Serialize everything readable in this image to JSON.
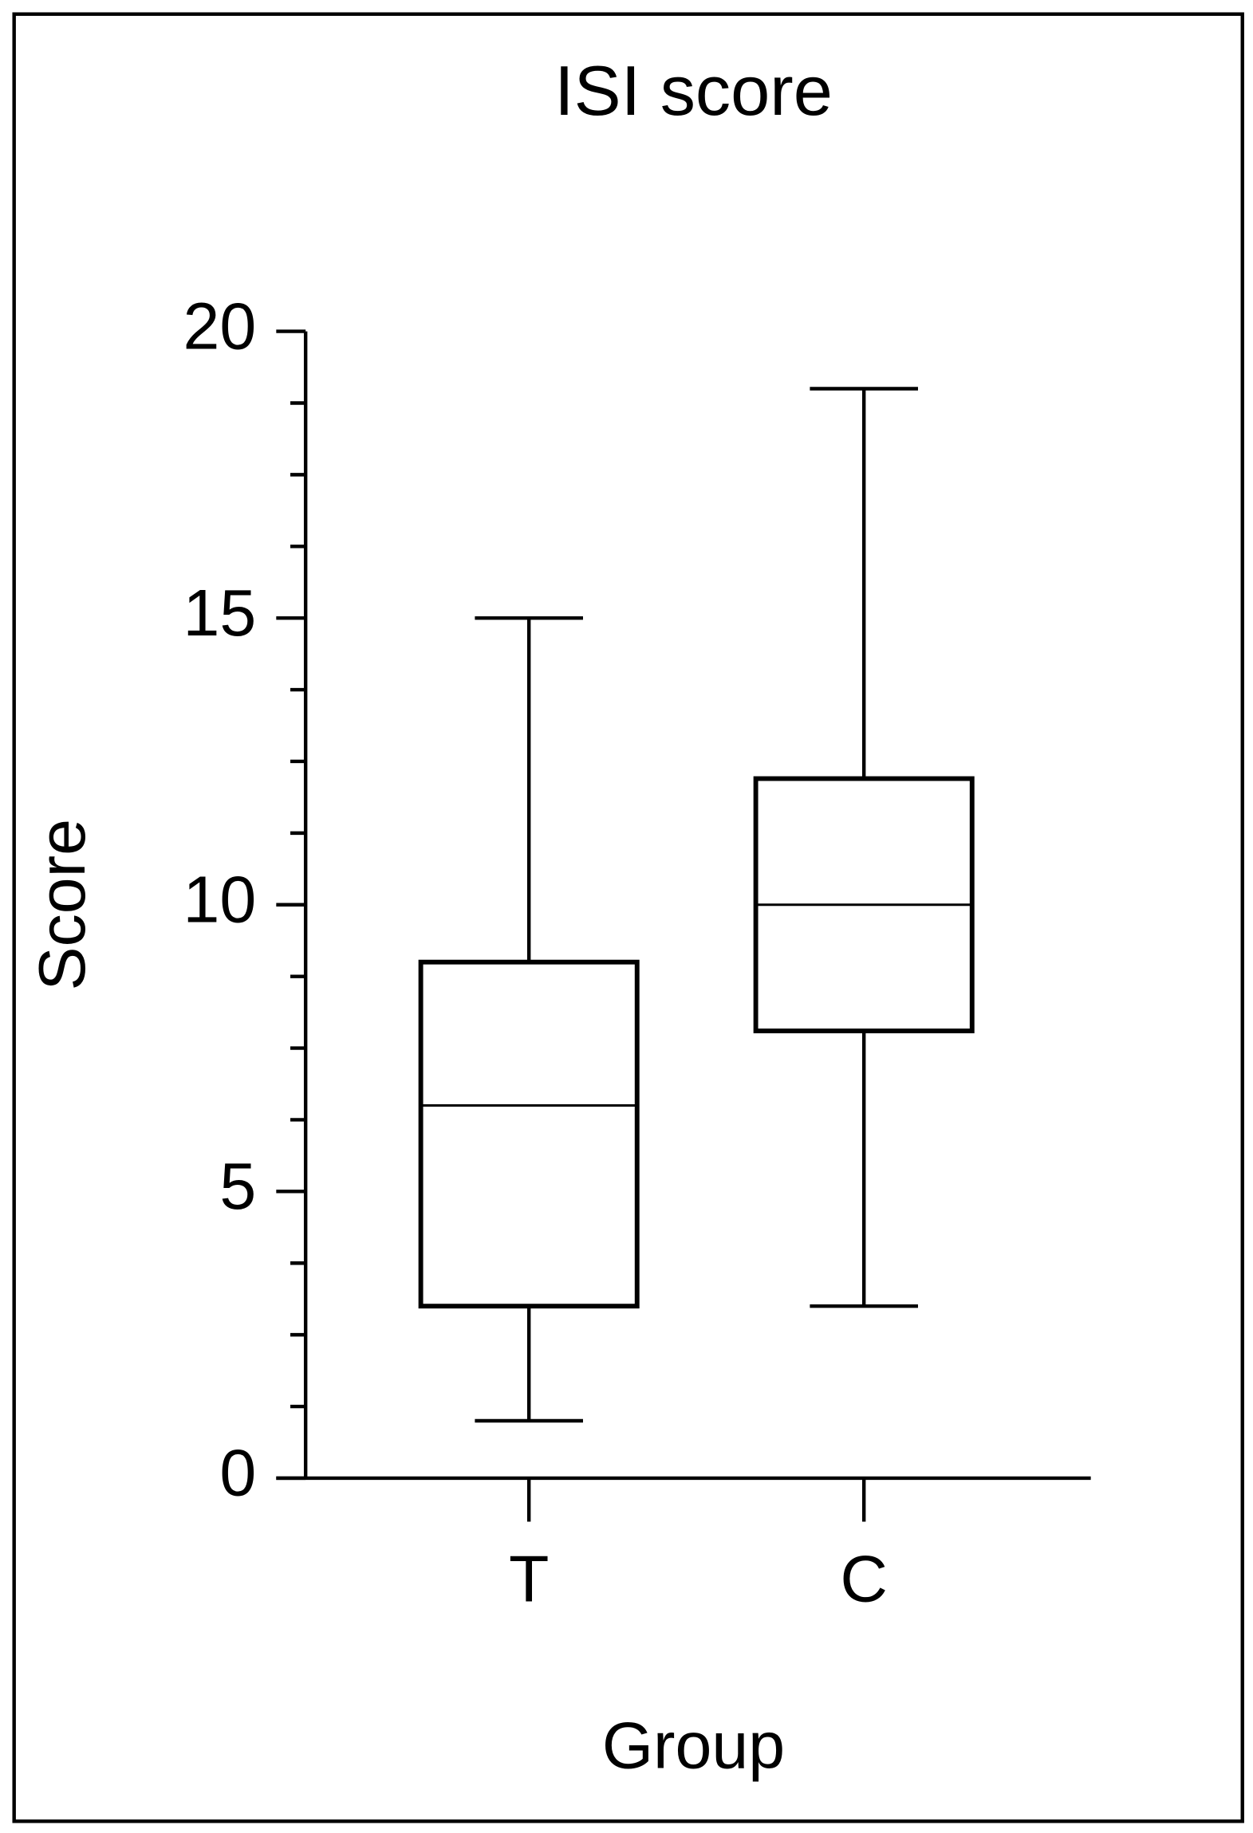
{
  "chart_data": {
    "type": "box",
    "title": "ISI score",
    "x_label": "Group",
    "y_label": "Score",
    "categories": [
      "T",
      "C"
    ],
    "boxes": [
      {
        "min": 1,
        "q1": 3,
        "median": 6.5,
        "q3": 9,
        "max": 15
      },
      {
        "min": 3,
        "q1": 7.8,
        "median": 10,
        "q3": 12.2,
        "max": 19
      }
    ],
    "color": "#000000",
    "ylim": [
      0,
      20
    ],
    "yticks": [
      0,
      5,
      10,
      15,
      20
    ],
    "minor_yticks": [
      1.25,
      2.5,
      3.75,
      6.25,
      7.5,
      8.75,
      11.25,
      12.5,
      13.75,
      16.25,
      17.5,
      18.75
    ],
    "grid": false
  }
}
